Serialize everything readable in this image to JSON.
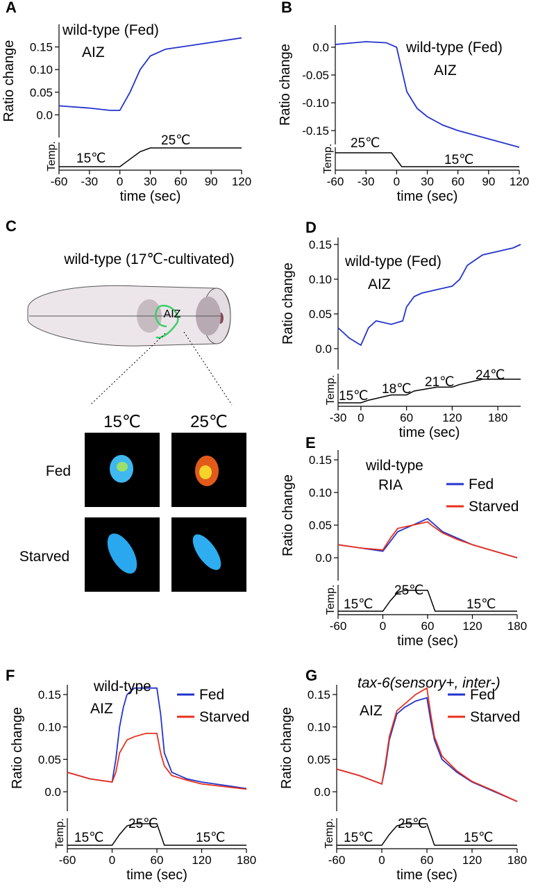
{
  "chart_data": [
    {
      "panel_label": "A",
      "type": "line",
      "annotations": [
        "wild-type (Fed)",
        "AIZ"
      ],
      "y_label": "Ratio change",
      "x_label": "time (sec)",
      "temp_label": "Temp.",
      "temp_annotations": [
        "15℃",
        "25℃"
      ],
      "x": [
        -60,
        -30,
        -10,
        0,
        10,
        20,
        30,
        45,
        60,
        90,
        120
      ],
      "series": [
        {
          "color": "#2233cc",
          "values": [
            0.02,
            0.015,
            0.01,
            0.01,
            0.05,
            0.1,
            0.13,
            0.145,
            0.15,
            0.16,
            0.17
          ]
        }
      ],
      "xlim": [
        -60,
        120
      ],
      "xticks": [
        -60,
        -30,
        0,
        30,
        60,
        90,
        120
      ],
      "ylim": [
        -0.05,
        0.2
      ],
      "yticks": [
        {
          "value": 0,
          "label": "0.0"
        },
        0.05,
        {
          "value": 0.1,
          "label": "0.10"
        },
        0.15
      ],
      "temp": {
        "x": [
          -60,
          0,
          10,
          20,
          30,
          120
        ],
        "values": [
          15,
          15,
          19,
          23,
          25,
          25
        ]
      }
    },
    {
      "panel_label": "B",
      "type": "line",
      "annotations": [
        "wild-type (Fed)",
        "AIZ"
      ],
      "y_label": "Ratio change",
      "x_label": "time (sec)",
      "temp_label": "Temp.",
      "temp_annotations": [
        "25℃",
        "15℃"
      ],
      "x": [
        -60,
        -30,
        -10,
        0,
        5,
        10,
        20,
        30,
        45,
        60,
        90,
        120
      ],
      "series": [
        {
          "color": "#2233cc",
          "values": [
            0.005,
            0.01,
            0.008,
            0.0,
            -0.04,
            -0.08,
            -0.11,
            -0.125,
            -0.14,
            -0.15,
            -0.165,
            -0.18
          ]
        }
      ],
      "xlim": [
        -60,
        120
      ],
      "xticks": [
        -60,
        -30,
        0,
        30,
        60,
        90,
        120
      ],
      "ylim": [
        -0.175,
        0.04
      ],
      "yticks": [
        {
          "value": 0,
          "label": "0.0"
        },
        -0.05,
        {
          "value": -0.1,
          "label": "-0.10"
        },
        -0.15
      ],
      "temp": {
        "x": [
          -60,
          -5,
          0,
          5,
          120
        ],
        "values": [
          25,
          25,
          20,
          15,
          15
        ]
      }
    },
    {
      "panel_label": "D",
      "type": "line",
      "annotations": [
        "wild-type (Fed)",
        "AIZ"
      ],
      "y_label": "Ratio change",
      "x_label": "time (sec)",
      "temp_label": "Temp.",
      "temp_annotations": [
        "15℃",
        "18℃",
        "21℃",
        "24℃"
      ],
      "x": [
        -30,
        -15,
        0,
        10,
        20,
        40,
        55,
        60,
        70,
        80,
        100,
        120,
        130,
        140,
        160,
        180,
        200,
        210
      ],
      "series": [
        {
          "color": "#2233cc",
          "values": [
            0.03,
            0.015,
            0.005,
            0.03,
            0.04,
            0.035,
            0.04,
            0.06,
            0.075,
            0.08,
            0.085,
            0.09,
            0.1,
            0.12,
            0.135,
            0.14,
            0.145,
            0.15
          ]
        }
      ],
      "xlim": [
        -30,
        210
      ],
      "xticks": [
        -30,
        0,
        60,
        120,
        180
      ],
      "ylim": [
        -0.03,
        0.16
      ],
      "yticks": [
        {
          "value": 0,
          "label": "0.0"
        },
        0.05,
        {
          "value": 0.1,
          "label": "0.10"
        },
        0.15
      ],
      "temp": {
        "x": [
          -30,
          0,
          10,
          40,
          60,
          70,
          100,
          120,
          130,
          160,
          180,
          210
        ],
        "values": [
          15,
          15,
          16,
          18,
          18,
          19.5,
          21,
          21,
          22,
          24,
          24,
          24
        ]
      }
    },
    {
      "panel_label": "E",
      "type": "line",
      "annotations": [
        "wild-type",
        "RIA"
      ],
      "y_label": "Ratio change",
      "x_label": "time (sec)",
      "temp_label": "Temp.",
      "temp_annotations": [
        "15℃",
        "25℃",
        "15℃"
      ],
      "x": [
        -60,
        -30,
        0,
        10,
        20,
        40,
        60,
        65,
        80,
        100,
        120,
        150,
        180
      ],
      "series": [
        {
          "name": "Fed",
          "color": "#2233cc",
          "values": [
            0.02,
            0.015,
            0.01,
            0.025,
            0.04,
            0.05,
            0.06,
            0.055,
            0.04,
            0.03,
            0.02,
            0.01,
            0.0
          ]
        },
        {
          "name": "Starved",
          "color": "#e8301c",
          "values": [
            0.02,
            0.015,
            0.012,
            0.03,
            0.045,
            0.05,
            0.055,
            0.05,
            0.038,
            0.028,
            0.02,
            0.01,
            0.0
          ]
        }
      ],
      "xlim": [
        -60,
        180
      ],
      "xticks": [
        -60,
        0,
        60,
        120,
        180
      ],
      "ylim": [
        -0.035,
        0.165
      ],
      "yticks": [
        {
          "value": 0,
          "label": "0.0"
        },
        0.05,
        {
          "value": 0.1,
          "label": "0.10"
        },
        0.15
      ],
      "temp": {
        "x": [
          -60,
          0,
          10,
          20,
          30,
          60,
          65,
          70,
          180
        ],
        "values": [
          15,
          15,
          20,
          24,
          25,
          25,
          20,
          15,
          15
        ]
      }
    },
    {
      "panel_label": "F",
      "type": "line",
      "annotations": [
        "wild-type",
        "AIZ"
      ],
      "y_label": "Ratio change",
      "x_label": "time (sec)",
      "temp_label": "Temp.",
      "temp_annotations": [
        "15℃",
        "25℃",
        "15℃"
      ],
      "x": [
        -60,
        -30,
        0,
        5,
        10,
        15,
        20,
        30,
        45,
        60,
        65,
        70,
        80,
        100,
        120,
        150,
        180
      ],
      "series": [
        {
          "name": "Fed",
          "color": "#2233cc",
          "values": [
            0.03,
            0.02,
            0.015,
            0.05,
            0.1,
            0.13,
            0.15,
            0.16,
            0.16,
            0.16,
            0.12,
            0.06,
            0.03,
            0.02,
            0.015,
            0.01,
            0.005
          ]
        },
        {
          "name": "Starved",
          "color": "#e8301c",
          "values": [
            0.03,
            0.02,
            0.015,
            0.03,
            0.06,
            0.07,
            0.08,
            0.085,
            0.09,
            0.09,
            0.06,
            0.04,
            0.025,
            0.018,
            0.012,
            0.008,
            0.004
          ]
        }
      ],
      "xlim": [
        -60,
        180
      ],
      "xticks": [
        -60,
        0,
        60,
        120,
        180
      ],
      "ylim": [
        -0.03,
        0.165
      ],
      "yticks": [
        {
          "value": 0,
          "label": "0.0"
        },
        0.05,
        {
          "value": 0.1,
          "label": "0.10"
        },
        0.15
      ],
      "temp": {
        "x": [
          -60,
          0,
          10,
          20,
          30,
          60,
          65,
          70,
          180
        ],
        "values": [
          15,
          15,
          20,
          24,
          25,
          25,
          20,
          15,
          15
        ]
      }
    },
    {
      "panel_label": "G",
      "type": "line",
      "annotations": [
        "tax-6(sensory+, inter-)",
        "AIZ"
      ],
      "y_label": "Ratio change",
      "x_label": "time (sec)",
      "temp_label": "Temp.",
      "temp_annotations": [
        "15℃",
        "25℃",
        "15℃"
      ],
      "x": [
        -60,
        -30,
        0,
        5,
        10,
        15,
        20,
        30,
        45,
        60,
        65,
        70,
        80,
        100,
        120,
        150,
        180
      ],
      "series": [
        {
          "name": "Fed",
          "color": "#2233cc",
          "values": [
            0.035,
            0.025,
            0.012,
            0.04,
            0.08,
            0.1,
            0.12,
            0.13,
            0.14,
            0.145,
            0.11,
            0.08,
            0.05,
            0.03,
            0.015,
            0,
            -0.015
          ]
        },
        {
          "name": "Starved",
          "color": "#e8301c",
          "values": [
            0.035,
            0.025,
            0.012,
            0.045,
            0.085,
            0.105,
            0.125,
            0.135,
            0.15,
            0.16,
            0.12,
            0.085,
            0.055,
            0.032,
            0.016,
            0.001,
            -0.015
          ]
        }
      ],
      "xlim": [
        -60,
        180
      ],
      "xticks": [
        -60,
        0,
        60,
        120,
        180
      ],
      "ylim": [
        -0.03,
        0.165
      ],
      "yticks": [
        {
          "value": 0,
          "label": "0.0"
        },
        0.05,
        {
          "value": 0.1,
          "label": "0.10"
        },
        0.15
      ],
      "temp": {
        "x": [
          -60,
          0,
          10,
          20,
          30,
          60,
          65,
          70,
          180
        ],
        "values": [
          15,
          15,
          20,
          24,
          25,
          25,
          20,
          15,
          15
        ]
      }
    }
  ],
  "diagram_c": {
    "panel_label": "C",
    "title": "wild-type (17℃-cultivated)",
    "neuron_label": "AIZ",
    "columns": [
      "15℃",
      "25℃"
    ],
    "rows": [
      "Fed",
      "Starved"
    ]
  }
}
